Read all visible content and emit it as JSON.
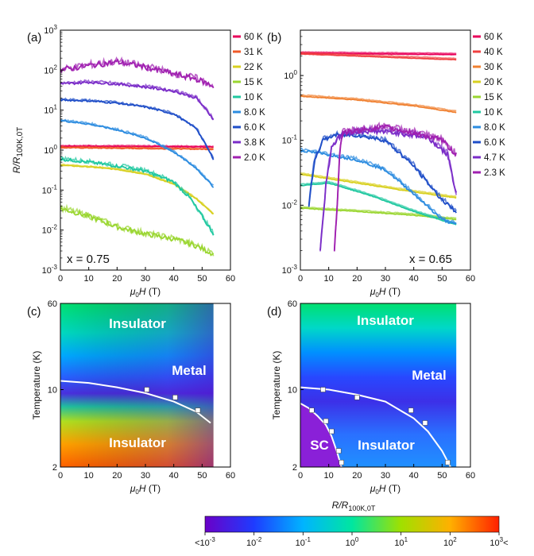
{
  "colorbar": {
    "label_main": "R/R",
    "label_sub": "100K,0T",
    "ticks": [
      {
        "base": "<10",
        "exp": "-3",
        "suffix": ""
      },
      {
        "base": "10",
        "exp": "-2",
        "suffix": ""
      },
      {
        "base": "10",
        "exp": "-1",
        "suffix": ""
      },
      {
        "base": "10",
        "exp": "0",
        "suffix": ""
      },
      {
        "base": "10",
        "exp": "1",
        "suffix": ""
      },
      {
        "base": "10",
        "exp": "2",
        "suffix": ""
      },
      {
        "base": "10",
        "exp": "3",
        "suffix": "<"
      }
    ],
    "colors": [
      "#6a00c8",
      "#1e3cff",
      "#00b4ff",
      "#00e6a0",
      "#a0e000",
      "#ffb000",
      "#ff2000"
    ]
  },
  "chart_data": [
    {
      "panel": "(a)",
      "type": "line",
      "annotation": "x = 0.75",
      "xlabel_mu": "μ",
      "xlabel_sub": "0",
      "xlabel_rest": "H (T)",
      "ylabel_main": "R/R",
      "ylabel_sub": "100K,0T",
      "xlim": [
        0,
        60
      ],
      "ylim": [
        0.001,
        1000
      ],
      "yscale": "log",
      "xticks": [
        "0",
        "10",
        "20",
        "30",
        "40",
        "50",
        "60"
      ],
      "yticks": [
        {
          "base": "10",
          "exp": "-3"
        },
        {
          "base": "10",
          "exp": "-2"
        },
        {
          "base": "10",
          "exp": "-1"
        },
        {
          "base": "10",
          "exp": "0"
        },
        {
          "base": "10",
          "exp": "1"
        },
        {
          "base": "10",
          "exp": "2"
        },
        {
          "base": "10",
          "exp": "3"
        }
      ],
      "legend_position": "right",
      "series": [
        {
          "name": "60 K",
          "color": "#e8005a",
          "noise": 0.01,
          "x": [
            0,
            54
          ],
          "y": [
            1.25,
            1.2
          ]
        },
        {
          "name": "31 K",
          "color": "#f05a28",
          "noise": 0.01,
          "x": [
            0,
            54
          ],
          "y": [
            1.15,
            1.05
          ]
        },
        {
          "name": "22 K",
          "color": "#d8d020",
          "noise": 0.01,
          "x": [
            0,
            10,
            20,
            30,
            40,
            48,
            54
          ],
          "y": [
            0.42,
            0.38,
            0.33,
            0.25,
            0.14,
            0.06,
            0.025
          ]
        },
        {
          "name": "15 K",
          "color": "#9ad630",
          "noise": 0.06,
          "x": [
            0,
            10,
            20,
            30,
            40,
            48,
            54
          ],
          "y": [
            0.035,
            0.022,
            0.012,
            0.008,
            0.006,
            0.004,
            0.0025
          ]
        },
        {
          "name": "10 K",
          "color": "#20c8a0",
          "noise": 0.04,
          "x": [
            0,
            10,
            20,
            30,
            40,
            46,
            54
          ],
          "y": [
            0.6,
            0.5,
            0.4,
            0.3,
            0.16,
            0.06,
            0.008
          ]
        },
        {
          "name": "8.0 K",
          "color": "#2c8ce0",
          "noise": 0.02,
          "x": [
            0,
            10,
            20,
            30,
            40,
            48,
            54
          ],
          "y": [
            5.5,
            4.5,
            3.2,
            2.0,
            0.9,
            0.35,
            0.12
          ]
        },
        {
          "name": "6.0 K",
          "color": "#1f4ec8",
          "noise": 0.02,
          "x": [
            0,
            10,
            20,
            30,
            40,
            48,
            54
          ],
          "y": [
            18,
            17,
            15,
            12,
            8,
            3.5,
            0.6
          ]
        },
        {
          "name": "3.8 K",
          "color": "#7a2cc8",
          "noise": 0.03,
          "x": [
            0,
            10,
            20,
            30,
            40,
            48,
            54
          ],
          "y": [
            45,
            50,
            45,
            38,
            30,
            20,
            6
          ]
        },
        {
          "name": "2.0 K",
          "color": "#a020b0",
          "noise": 0.07,
          "x": [
            0,
            10,
            20,
            30,
            40,
            48,
            54
          ],
          "y": [
            100,
            130,
            160,
            120,
            80,
            60,
            40
          ]
        }
      ]
    },
    {
      "panel": "(b)",
      "type": "line",
      "annotation": "x = 0.65",
      "xlabel_mu": "μ",
      "xlabel_sub": "0",
      "xlabel_rest": "H (T)",
      "xlim": [
        0,
        60
      ],
      "ylim": [
        0.001,
        5
      ],
      "yscale": "log",
      "xticks": [
        "0",
        "10",
        "20",
        "30",
        "40",
        "50",
        "60"
      ],
      "yticks": [
        {
          "base": "10",
          "exp": "-3"
        },
        {
          "base": "10",
          "exp": "-2"
        },
        {
          "base": "10",
          "exp": "-1"
        },
        {
          "base": "10",
          "exp": "0"
        }
      ],
      "legend_position": "right",
      "series": [
        {
          "name": "60 K",
          "color": "#e8005a",
          "noise": 0.003,
          "x": [
            0,
            55
          ],
          "y": [
            2.2,
            2.1
          ]
        },
        {
          "name": "40 K",
          "color": "#f04040",
          "noise": 0.003,
          "x": [
            0,
            55
          ],
          "y": [
            2.15,
            1.75
          ]
        },
        {
          "name": "30 K",
          "color": "#f08030",
          "noise": 0.005,
          "x": [
            0,
            20,
            40,
            55
          ],
          "y": [
            0.48,
            0.42,
            0.34,
            0.27
          ]
        },
        {
          "name": "20 K",
          "color": "#d8d020",
          "noise": 0.005,
          "x": [
            0,
            20,
            40,
            55
          ],
          "y": [
            0.03,
            0.022,
            0.016,
            0.013
          ]
        },
        {
          "name": "15 K",
          "color": "#9ad630",
          "noise": 0.005,
          "x": [
            0,
            20,
            40,
            55
          ],
          "y": [
            0.009,
            0.008,
            0.007,
            0.006
          ]
        },
        {
          "name": "10 K",
          "color": "#20c8a0",
          "noise": 0.005,
          "x": [
            0,
            10,
            25,
            40,
            55
          ],
          "y": [
            0.02,
            0.022,
            0.014,
            0.008,
            0.005
          ]
        },
        {
          "name": "8.0 K",
          "color": "#2c8ce0",
          "noise": 0.02,
          "x": [
            0,
            10,
            20,
            30,
            40,
            50,
            55
          ],
          "y": [
            0.07,
            0.06,
            0.05,
            0.035,
            0.015,
            0.006,
            0.005
          ]
        },
        {
          "name": "6.0 K",
          "color": "#1f4ec8",
          "noise": 0.03,
          "x": [
            3,
            5,
            8,
            12,
            20,
            30,
            40,
            50,
            55
          ],
          "y": [
            0.01,
            0.05,
            0.1,
            0.12,
            0.12,
            0.1,
            0.04,
            0.012,
            0.008
          ]
        },
        {
          "name": "4.7 K",
          "color": "#7a2cc8",
          "noise": 0.04,
          "x": [
            7,
            9,
            11,
            15,
            25,
            35,
            45,
            52,
            55
          ],
          "y": [
            0.002,
            0.02,
            0.08,
            0.13,
            0.14,
            0.13,
            0.11,
            0.06,
            0.015
          ]
        },
        {
          "name": "2.3 K",
          "color": "#a020b0",
          "noise": 0.04,
          "x": [
            12,
            13,
            14,
            15,
            20,
            30,
            40,
            50,
            55
          ],
          "y": [
            0.002,
            0.01,
            0.08,
            0.13,
            0.14,
            0.16,
            0.13,
            0.1,
            0.06
          ]
        }
      ]
    },
    {
      "panel": "(c)",
      "type": "heatmap",
      "xlabel_mu": "μ",
      "xlabel_sub": "0",
      "xlabel_rest": "H (T)",
      "ylabel": "Temperature (K)",
      "xlim": [
        0,
        60
      ],
      "ylim": [
        2,
        60
      ],
      "yscale": "log",
      "xticks": [
        "0",
        "10",
        "20",
        "30",
        "40",
        "50",
        "60"
      ],
      "yticks": [
        "2",
        "10",
        "60"
      ],
      "data_extent_x": 54,
      "regions": [
        "Insulator",
        "Metal",
        "Insulator"
      ],
      "points": [
        [
          30.5,
          10
        ],
        [
          40.5,
          8.5
        ],
        [
          48.5,
          6.5
        ]
      ],
      "boundary_x": [
        0,
        10,
        20,
        30,
        40,
        48,
        53
      ],
      "boundary_y": [
        12,
        11.5,
        10.5,
        9.3,
        7.8,
        6.3,
        5.0
      ]
    },
    {
      "panel": "(d)",
      "type": "heatmap",
      "xlabel_mu": "μ",
      "xlabel_sub": "0",
      "xlabel_rest": "H (T)",
      "ylabel": "Temperature (K)",
      "xlim": [
        0,
        60
      ],
      "ylim": [
        2,
        60
      ],
      "yscale": "log",
      "xticks": [
        "0",
        "10",
        "20",
        "30",
        "40",
        "50",
        "60"
      ],
      "yticks": [
        "2",
        "10",
        "60"
      ],
      "data_extent_x": 55,
      "regions": [
        "Insulator",
        "Metal",
        "SC",
        "Insulator"
      ],
      "points": [
        [
          8,
          10
        ],
        [
          20,
          8.5
        ],
        [
          39,
          6.5
        ],
        [
          44,
          5.0
        ],
        [
          52,
          2.2
        ],
        [
          4,
          6.5
        ],
        [
          9,
          5.2
        ],
        [
          11,
          4.2
        ],
        [
          13.5,
          2.8
        ],
        [
          14.5,
          2.2
        ]
      ],
      "boundary_x": [
        0,
        10,
        20,
        30,
        40,
        45,
        50,
        53
      ],
      "boundary_y": [
        10.5,
        10,
        9,
        7.8,
        5.5,
        4.2,
        2.8,
        2.0
      ],
      "sc_boundary_x": [
        0,
        3,
        6,
        9,
        11,
        13,
        14.5
      ],
      "sc_boundary_y": [
        7.5,
        6.8,
        5.8,
        4.8,
        3.8,
        2.7,
        2.0
      ]
    }
  ]
}
